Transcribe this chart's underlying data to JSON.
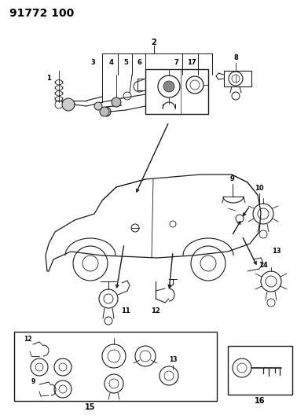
{
  "title": "91772 100",
  "bg_color": "#ffffff",
  "fig_width": 3.92,
  "fig_height": 5.33,
  "dpi": 100,
  "line_color": "#1a1a1a",
  "text_color": "#000000",
  "title_fontsize": 10,
  "label_fontsize": 6.5
}
